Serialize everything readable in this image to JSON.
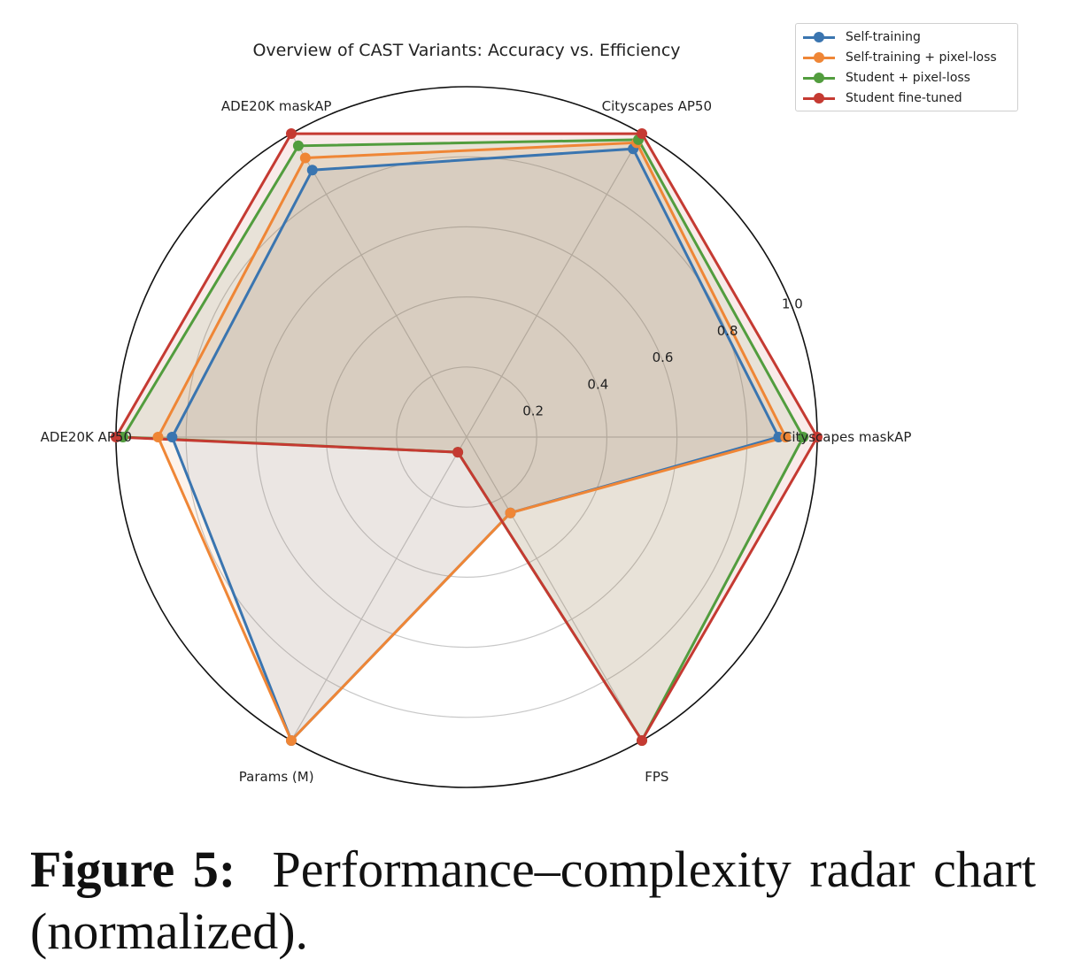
{
  "chart_data": {
    "type": "radar",
    "title": "Overview of CAST Variants: Accuracy vs. Efficiency",
    "axes": [
      "Cityscapes maskAP",
      "Cityscapes AP50",
      "ADE20K maskAP",
      "ADE20K AP50",
      "Params (M)",
      "FPS"
    ],
    "rlim": [
      0,
      1.0
    ],
    "rticks": [
      "0.2",
      "0.4",
      "0.6",
      "0.8",
      "1.0"
    ],
    "rtick_values": [
      0.2,
      0.4,
      0.6,
      0.8,
      1.0
    ],
    "legend_position": "top-right",
    "grid": true,
    "series": [
      {
        "name": "Self-training",
        "color": "#3a75b0",
        "values": [
          0.89,
          0.95,
          0.88,
          0.84,
          1.0,
          0.25
        ]
      },
      {
        "name": "Self-training + pixel-loss",
        "color": "#ef8636",
        "values": [
          0.91,
          0.97,
          0.92,
          0.88,
          1.0,
          0.25
        ]
      },
      {
        "name": "Student + pixel-loss",
        "color": "#529d3e",
        "values": [
          0.96,
          0.98,
          0.96,
          0.98,
          0.05,
          1.0
        ]
      },
      {
        "name": "Student fine-tuned",
        "color": "#c53a32",
        "values": [
          1.0,
          1.0,
          1.0,
          1.0,
          0.05,
          1.0
        ]
      }
    ]
  },
  "caption": {
    "label": "Figure 5:",
    "text": "Performance–complexity radar chart (normalized)."
  }
}
